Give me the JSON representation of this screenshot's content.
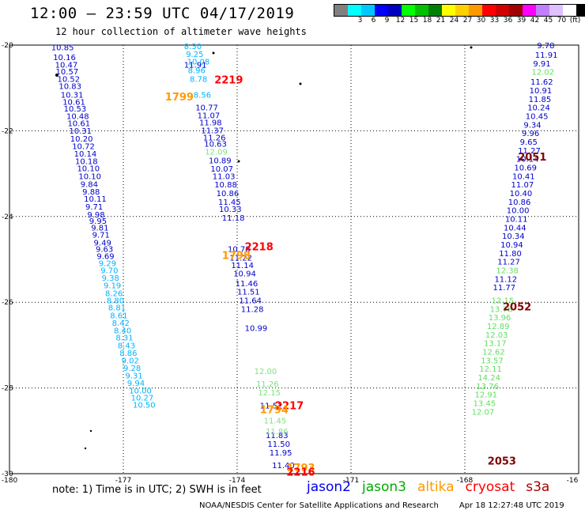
{
  "header": {
    "title": "12:00 – 23:59 UTC 04/17/2019",
    "subtitle": "12 hour collection of altimeter wave heights"
  },
  "colorbar": {
    "colors": [
      "#808080",
      "#00ffff",
      "#00c8ff",
      "#0000ff",
      "#0000c0",
      "#00ff00",
      "#00c000",
      "#008000",
      "#ffff00",
      "#ffd000",
      "#ff9900",
      "#ff0000",
      "#d00000",
      "#a00000",
      "#ff00ff",
      "#c080ff",
      "#e0c0ff",
      "#ffffff",
      "#000000"
    ],
    "labels": [
      "3",
      "6",
      "9",
      "12",
      "15",
      "18",
      "21",
      "24",
      "27",
      "30",
      "33",
      "36",
      "39",
      "42",
      "45",
      "70",
      "(ft)"
    ],
    "label_positions": [
      1,
      2,
      3,
      4,
      5,
      6,
      7,
      8,
      9,
      10,
      11,
      12,
      13,
      14,
      15,
      16,
      17
    ]
  },
  "map": {
    "lon_labels": [
      "-180",
      "-177",
      "-174",
      "-171",
      "-168",
      "-16"
    ],
    "lat_labels": [
      "-20",
      "-22",
      "-24",
      "-26",
      "-28",
      "-30"
    ]
  },
  "passes": [
    {
      "id": "2219",
      "sat": "cryosat",
      "color": "#ff0000",
      "lat": -20.8,
      "lon": -174.6
    },
    {
      "id": "1799",
      "sat": "altika",
      "color": "#ff9900",
      "lat": -21.2,
      "lon": -175.9
    },
    {
      "id": "2218",
      "sat": "cryosat",
      "color": "#ff0000",
      "lat": -24.7,
      "lon": -173.8
    },
    {
      "id": "1798",
      "sat": "altika",
      "color": "#ff9900",
      "lat": -24.9,
      "lon": -174.4
    },
    {
      "id": "2217",
      "sat": "cryosat",
      "color": "#ff0000",
      "lat": -28.4,
      "lon": -173.0
    },
    {
      "id": "1794",
      "sat": "altika",
      "color": "#ff9900",
      "lat": -28.5,
      "lon": -173.4
    },
    {
      "id": "1793",
      "sat": "altika",
      "color": "#ff9900",
      "lat": -29.85,
      "lon": -172.7
    },
    {
      "id": "2216",
      "sat": "cryosat",
      "color": "#ff0000",
      "lat": -29.95,
      "lon": -172.7
    },
    {
      "id": "2051",
      "sat": "s3a",
      "color": "#800000",
      "lat": -22.6,
      "lon": -166.6
    },
    {
      "id": "2052",
      "sat": "s3a",
      "color": "#800000",
      "lat": -26.1,
      "lon": -167.0
    },
    {
      "id": "2053",
      "sat": "s3a",
      "color": "#800000",
      "lat": -29.7,
      "lon": -167.4
    }
  ],
  "tracks": [
    {
      "name": "track-west-a",
      "color": "#0000cc",
      "points": [
        [
          "10.85",
          -20.05,
          -178.9
        ],
        [
          "10.16",
          -20.28,
          -178.85
        ],
        [
          "10.47",
          -20.45,
          -178.8
        ],
        [
          "10.57",
          -20.61,
          -178.78
        ],
        [
          "10.52",
          -20.78,
          -178.74
        ],
        [
          "10.83",
          -20.95,
          -178.7
        ],
        [
          "10.31",
          -21.15,
          -178.65
        ],
        [
          "10.61",
          -21.32,
          -178.6
        ],
        [
          "10.53",
          -21.48,
          -178.57
        ],
        [
          "10.48",
          -21.65,
          -178.5
        ],
        [
          "10.61",
          -21.82,
          -178.47
        ],
        [
          "10.31",
          -21.99,
          -178.43
        ],
        [
          "10.20",
          -22.18,
          -178.4
        ],
        [
          "10.72",
          -22.35,
          -178.35
        ],
        [
          "10.14",
          -22.53,
          -178.3
        ],
        [
          "10.18",
          -22.7,
          -178.27
        ],
        [
          "10.10",
          -22.87,
          -178.22
        ],
        [
          "10.10",
          -23.05,
          -178.18
        ],
        [
          "9.84",
          -23.24,
          -178.13
        ],
        [
          "9.88",
          -23.41,
          -178.08
        ],
        [
          "10.11",
          -23.58,
          -178.04
        ],
        [
          "9.71",
          -23.76,
          -178.0
        ],
        [
          "9.98",
          -23.95,
          -177.95
        ],
        [
          "9.95",
          -24.1,
          -177.9
        ],
        [
          "9.81",
          -24.25,
          -177.85
        ],
        [
          "9.71",
          -24.42,
          -177.82
        ],
        [
          "9.49",
          -24.6,
          -177.78
        ],
        [
          "9.63",
          -24.75,
          -177.73
        ],
        [
          "9.69",
          -24.92,
          -177.7
        ]
      ]
    },
    {
      "name": "track-west-b",
      "color": "#00b4ff",
      "points": [
        [
          "9.29",
          -25.08,
          -177.65
        ],
        [
          "9.70",
          -25.25,
          -177.6
        ],
        [
          "9.38",
          -25.42,
          -177.57
        ],
        [
          "9.19",
          -25.6,
          -177.52
        ],
        [
          "8.26",
          -25.78,
          -177.48
        ],
        [
          "8.80",
          -25.95,
          -177.44
        ],
        [
          "8.81",
          -26.12,
          -177.4
        ],
        [
          "8.61",
          -26.3,
          -177.35
        ],
        [
          "8.42",
          -26.48,
          -177.3
        ],
        [
          "8.40",
          -26.65,
          -177.25
        ],
        [
          "8.31",
          -26.82,
          -177.2
        ],
        [
          "8.43",
          -27.0,
          -177.15
        ],
        [
          "8.86",
          -27.18,
          -177.1
        ],
        [
          "9.02",
          -27.35,
          -177.05
        ],
        [
          "9.28",
          -27.53,
          -177.0
        ],
        [
          "9.31",
          -27.7,
          -176.95
        ],
        [
          "9.94",
          -27.88,
          -176.9
        ],
        [
          "10.00",
          -28.05,
          -176.85
        ],
        [
          "10.27",
          -28.22,
          -176.8
        ],
        [
          "10.50",
          -28.39,
          -176.75
        ]
      ]
    },
    {
      "name": "track-mid",
      "color": "#0000cc",
      "points": [
        [
          "11.91",
          -20.45,
          -175.4
        ],
        [
          "10.77",
          -21.45,
          -175.1
        ],
        [
          "11.07",
          -21.63,
          -175.05
        ],
        [
          "11.98",
          -21.8,
          -175.0
        ],
        [
          "11.37",
          -21.98,
          -174.95
        ],
        [
          "11.26",
          -22.15,
          -174.9
        ],
        [
          "10.63",
          -22.3,
          -174.87
        ],
        [
          "10.89",
          -22.68,
          -174.75
        ],
        [
          "10.07",
          -22.88,
          -174.7
        ],
        [
          "11.03",
          -23.05,
          -174.65
        ],
        [
          "10.88",
          -23.25,
          -174.6
        ],
        [
          "10.86",
          -23.45,
          -174.55
        ],
        [
          "11.45",
          -23.65,
          -174.5
        ],
        [
          "10.33",
          -23.82,
          -174.48
        ],
        [
          "11.18",
          -24.02,
          -174.4
        ],
        [
          "10.78",
          -24.75,
          -174.25
        ],
        [
          "11.22",
          -24.95,
          -174.2
        ],
        [
          "11.14",
          -25.13,
          -174.16
        ],
        [
          "10.94",
          -25.32,
          -174.1
        ],
        [
          "11.46",
          -25.55,
          -174.05
        ],
        [
          "11.51",
          -25.75,
          -174.0
        ],
        [
          "11.64",
          -25.95,
          -173.95
        ],
        [
          "11.28",
          -26.15,
          -173.9
        ],
        [
          "10.99",
          -26.6,
          -173.8
        ],
        [
          "11.52",
          -28.4,
          -173.4
        ],
        [
          "11.83",
          -29.1,
          -173.25
        ],
        [
          "11.50",
          -29.3,
          -173.2
        ],
        [
          "11.95",
          -29.5,
          -173.15
        ],
        [
          "11.40",
          -29.8,
          -173.08
        ]
      ]
    },
    {
      "name": "track-mid-b",
      "color": "#00b4ff",
      "points": [
        [
          "8.30",
          -20.02,
          -175.4
        ],
        [
          "9.25",
          -20.2,
          -175.35
        ],
        [
          "10.08",
          -20.38,
          -175.32
        ],
        [
          "8.96",
          -20.58,
          -175.3
        ],
        [
          "8.78",
          -20.78,
          -175.25
        ],
        [
          "8.56",
          -21.15,
          -175.15
        ]
      ]
    },
    {
      "name": "track-mid-c",
      "color": "#80e080",
      "points": [
        [
          "12.09",
          -22.48,
          -174.85
        ],
        [
          "12.00",
          -27.6,
          -173.55
        ],
        [
          "11.26",
          -27.9,
          -173.5
        ],
        [
          "12.15",
          -28.1,
          -173.45
        ],
        [
          "11.45",
          -28.75,
          -173.3
        ],
        [
          "11.86",
          -29.0,
          -173.25
        ]
      ]
    },
    {
      "name": "track-east",
      "color": "#0000cc",
      "points": [
        [
          "9.78",
          -20.0,
          -166.1
        ],
        [
          "11.91",
          -20.22,
          -166.15
        ],
        [
          "9.91",
          -20.42,
          -166.2
        ],
        [
          "11.62",
          -20.85,
          -166.27
        ],
        [
          "10.91",
          -21.05,
          -166.3
        ],
        [
          "11.85",
          -21.25,
          -166.32
        ],
        [
          "10.24",
          -21.45,
          -166.35
        ],
        [
          "10.45",
          -21.65,
          -166.4
        ],
        [
          "9.34",
          -21.85,
          -166.45
        ],
        [
          "9.96",
          -22.05,
          -166.5
        ],
        [
          "9.65",
          -22.25,
          -166.55
        ],
        [
          "11.27",
          -22.45,
          -166.6
        ],
        [
          "10.14",
          -22.65,
          -166.65
        ],
        [
          "10.69",
          -22.85,
          -166.7
        ],
        [
          "10.41",
          -23.05,
          -166.75
        ],
        [
          "11.07",
          -23.25,
          -166.78
        ],
        [
          "10.40",
          -23.45,
          -166.82
        ],
        [
          "10.86",
          -23.65,
          -166.86
        ],
        [
          "10.00",
          -23.85,
          -166.9
        ],
        [
          "10.11",
          -24.05,
          -166.94
        ],
        [
          "10.44",
          -24.25,
          -166.98
        ],
        [
          "10.34",
          -24.45,
          -167.02
        ],
        [
          "10.94",
          -24.65,
          -167.06
        ],
        [
          "11.80",
          -24.85,
          -167.1
        ],
        [
          "11.27",
          -25.05,
          -167.14
        ],
        [
          "11.12",
          -25.45,
          -167.22
        ],
        [
          "11.77",
          -25.65,
          -167.26
        ]
      ]
    },
    {
      "name": "track-east-green",
      "color": "#60e060",
      "points": [
        [
          "12.02",
          -20.62,
          -166.24
        ],
        [
          "12.38",
          -25.25,
          -167.18
        ],
        [
          "12.15",
          -25.95,
          -167.3
        ],
        [
          "13.78",
          -26.15,
          -167.34
        ],
        [
          "13.96",
          -26.35,
          -167.38
        ],
        [
          "12.89",
          -26.55,
          -167.42
        ],
        [
          "12.03",
          -26.75,
          -167.46
        ],
        [
          "13.17",
          -26.95,
          -167.5
        ],
        [
          "12.62",
          -27.15,
          -167.54
        ],
        [
          "13.57",
          -27.35,
          -167.58
        ],
        [
          "12.11",
          -27.55,
          -167.62
        ],
        [
          "14.24",
          -27.75,
          -167.66
        ],
        [
          "13.76",
          -27.95,
          -167.7
        ],
        [
          "12.91",
          -28.15,
          -167.74
        ],
        [
          "13.45",
          -28.35,
          -167.78
        ],
        [
          "12.07",
          -28.55,
          -167.82
        ]
      ]
    }
  ],
  "notes": {
    "note": "note:  1) Time is in UTC; 2) SWH is in feet",
    "legend": [
      {
        "label": "jason2",
        "color": "#0000ee"
      },
      {
        "label": "jason3",
        "color": "#00aa00"
      },
      {
        "label": "altika",
        "color": "#ff9900"
      },
      {
        "label": "cryosat",
        "color": "#ff0000"
      },
      {
        "label": "s3a",
        "color": "#aa0000"
      }
    ],
    "footer_org": "NOAA/NESDIS Center for Satellite Applications and Research",
    "footer_time": "Apr 18 12:27:48 UTC 2019"
  }
}
